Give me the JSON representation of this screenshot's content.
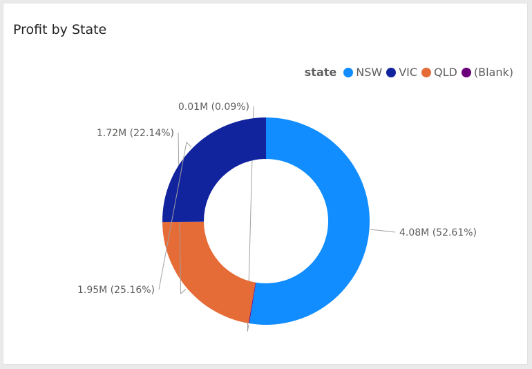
{
  "visual": {
    "title": "Profit by State"
  },
  "legend": {
    "title": "state",
    "items": [
      {
        "label": "NSW",
        "color": "#118dff"
      },
      {
        "label": "VIC",
        "color": "#12239e"
      },
      {
        "label": "QLD",
        "color": "#e66c37"
      },
      {
        "label": "(Blank)",
        "color": "#6b007b"
      }
    ]
  },
  "chart_data": {
    "type": "pie",
    "title": "Profit by State",
    "legend_title": "state",
    "legend_position": "top-right",
    "donut": true,
    "categories": [
      "NSW",
      "(Blank)",
      "QLD",
      "VIC"
    ],
    "values": [
      4.08,
      0.01,
      1.72,
      1.95
    ],
    "percentages": [
      52.61,
      0.09,
      22.14,
      25.16
    ],
    "colors": [
      "#118dff",
      "#6b007b",
      "#e66c37",
      "#12239e"
    ],
    "data_labels": [
      "4.08M (52.61%)",
      "0.01M (0.09%)",
      "1.72M (22.14%)",
      "1.95M (25.16%)"
    ]
  }
}
